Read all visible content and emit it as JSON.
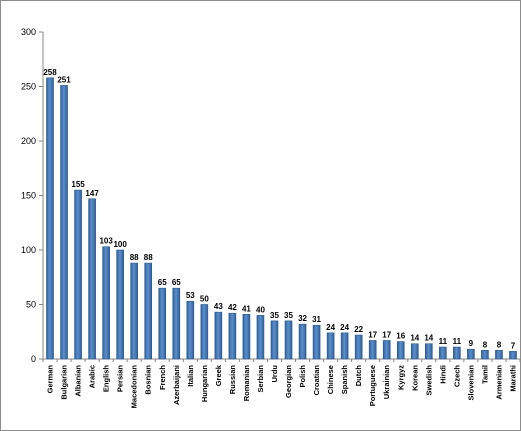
{
  "chart_data": {
    "type": "bar",
    "categories": [
      "German",
      "Bulgarian",
      "Albanian",
      "Arabic",
      "English",
      "Persian",
      "Macedonian",
      "Bosnian",
      "French",
      "Azerbaijani",
      "Italian",
      "Hungarian",
      "Greek",
      "Russian",
      "Romanian",
      "Serbian",
      "Urdu",
      "Georgian",
      "Polish",
      "Croatian",
      "Chinese",
      "Spanish",
      "Dutch",
      "Portuguese",
      "Ukrainian",
      "Kyrgyz",
      "Korean",
      "Swedish",
      "Hindi",
      "Czech",
      "Slovenian",
      "Tamil",
      "Armenian",
      "Marathi"
    ],
    "values": [
      258,
      251,
      155,
      147,
      103,
      100,
      88,
      88,
      65,
      65,
      53,
      50,
      43,
      42,
      41,
      40,
      35,
      35,
      32,
      31,
      24,
      24,
      22,
      17,
      17,
      16,
      14,
      14,
      11,
      11,
      9,
      8,
      8,
      7
    ],
    "ylim": [
      0,
      300
    ],
    "yticks": [
      0,
      50,
      100,
      150,
      200,
      250,
      300
    ],
    "grid": false,
    "legend": "none",
    "bar_color": "#4a7ebb",
    "bar_edge_color": "#2c5a8c"
  }
}
